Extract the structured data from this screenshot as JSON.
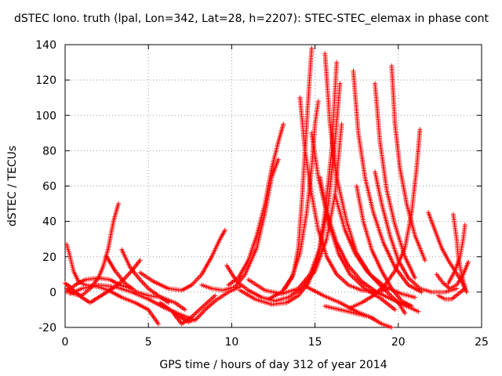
{
  "chart_data": {
    "type": "scatter",
    "title": "dSTEC Iono. truth (lpal, Lon=342, Lat=28, h=2207): STEC-STEC_elemax in phase cont",
    "xlabel": "GPS time / hours of day 312 of year 2014",
    "ylabel": "dSTEC  / TECUs",
    "xlim": [
      0,
      25
    ],
    "ylim": [
      -20,
      140
    ],
    "xticks": [
      0,
      5,
      10,
      15,
      20,
      25
    ],
    "yticks": [
      -20,
      0,
      20,
      40,
      60,
      80,
      100,
      120,
      140
    ],
    "grid": true,
    "marker": "+",
    "marker_color": "#ff0000",
    "series": [
      {
        "points": [
          [
            0,
            5
          ],
          [
            0.3,
            3
          ],
          [
            0.6,
            0
          ],
          [
            1,
            -3
          ],
          [
            1.5,
            -6
          ],
          [
            2,
            -3
          ],
          [
            2.5,
            0
          ],
          [
            3,
            3
          ],
          [
            3.5,
            7
          ],
          [
            4,
            12
          ],
          [
            4.5,
            18
          ]
        ]
      },
      {
        "points": [
          [
            0.1,
            2
          ],
          [
            0.5,
            -1
          ],
          [
            1,
            -2
          ],
          [
            1.5,
            2
          ],
          [
            2,
            8
          ],
          [
            2.3,
            15
          ],
          [
            2.6,
            25
          ],
          [
            2.9,
            40
          ],
          [
            3.2,
            50
          ]
        ]
      },
      {
        "points": [
          [
            0.1,
            0
          ],
          [
            0.6,
            4
          ],
          [
            1.2,
            7
          ],
          [
            2,
            8
          ],
          [
            2.7,
            7
          ],
          [
            3.3,
            4
          ],
          [
            4,
            2
          ]
        ]
      },
      {
        "points": [
          [
            0.3,
            -1
          ],
          [
            1,
            2
          ],
          [
            2,
            4
          ],
          [
            3,
            3
          ],
          [
            4,
            0
          ],
          [
            5,
            -4
          ],
          [
            6,
            -9
          ],
          [
            7,
            -13
          ],
          [
            7.8,
            -16
          ]
        ]
      },
      {
        "points": [
          [
            0.1,
            27
          ],
          [
            0.3,
            20
          ],
          [
            0.5,
            12
          ],
          [
            0.8,
            6
          ],
          [
            1.2,
            4
          ],
          [
            2,
            3
          ],
          [
            2.6,
            1
          ],
          [
            3.4,
            -3
          ],
          [
            4.2,
            -6
          ],
          [
            5,
            -10
          ],
          [
            5.6,
            -18
          ]
        ]
      },
      {
        "points": [
          [
            2.5,
            20
          ],
          [
            3,
            12
          ],
          [
            3.6,
            5
          ],
          [
            4.3,
            0
          ],
          [
            5,
            -2
          ],
          [
            5.8,
            -3
          ],
          [
            6.6,
            -6
          ],
          [
            7.2,
            -10
          ]
        ]
      },
      {
        "points": [
          [
            3.4,
            24
          ],
          [
            3.9,
            14
          ],
          [
            4.5,
            7
          ],
          [
            5,
            2
          ],
          [
            5.6,
            -2
          ],
          [
            6.2,
            -6
          ]
        ]
      },
      {
        "points": [
          [
            4.5,
            11
          ],
          [
            5.3,
            6
          ],
          [
            6.2,
            2
          ],
          [
            7,
            1
          ],
          [
            7.6,
            4
          ],
          [
            8.2,
            10
          ],
          [
            8.8,
            20
          ],
          [
            9.3,
            30
          ],
          [
            9.6,
            35
          ]
        ]
      },
      {
        "points": [
          [
            5.7,
            -6
          ],
          [
            6.3,
            -10
          ],
          [
            6.9,
            -14
          ],
          [
            7.4,
            -17
          ],
          [
            7.9,
            -15
          ],
          [
            8.4,
            -10
          ],
          [
            9,
            -5
          ],
          [
            9.8,
            0
          ],
          [
            10.5,
            3
          ]
        ]
      },
      {
        "points": [
          [
            6.5,
            -12
          ],
          [
            7,
            -18
          ],
          [
            7.6,
            -14
          ],
          [
            8.3,
            -8
          ],
          [
            9,
            -2
          ]
        ]
      },
      {
        "points": [
          [
            8.2,
            4
          ],
          [
            8.8,
            2
          ],
          [
            9.5,
            1
          ],
          [
            10.2,
            3
          ],
          [
            10.8,
            10
          ],
          [
            11.5,
            25
          ],
          [
            12,
            45
          ],
          [
            12.4,
            65
          ],
          [
            12.8,
            75
          ]
        ]
      },
      {
        "points": [
          [
            9.8,
            4
          ],
          [
            10.4,
            8
          ],
          [
            11,
            18
          ],
          [
            11.5,
            32
          ],
          [
            12,
            50
          ],
          [
            12.4,
            70
          ],
          [
            12.8,
            85
          ],
          [
            13.1,
            95
          ]
        ]
      },
      {
        "points": [
          [
            9.7,
            15
          ],
          [
            10.3,
            6
          ],
          [
            11,
            1
          ],
          [
            11.8,
            -3
          ],
          [
            12.6,
            -5
          ],
          [
            13.4,
            -3
          ],
          [
            14.2,
            2
          ],
          [
            15,
            12
          ],
          [
            15.7,
            30
          ],
          [
            16.2,
            55
          ],
          [
            16.6,
            95
          ]
        ]
      },
      {
        "points": [
          [
            10.5,
            1
          ],
          [
            11.4,
            -4
          ],
          [
            12.4,
            -7
          ],
          [
            13.3,
            -6
          ],
          [
            14,
            -2
          ],
          [
            14.6,
            5
          ],
          [
            15.2,
            20
          ],
          [
            15.6,
            45
          ],
          [
            16,
            80
          ],
          [
            16.3,
            130
          ]
        ]
      },
      {
        "points": [
          [
            11,
            7
          ],
          [
            12,
            1
          ],
          [
            13,
            -1
          ],
          [
            14,
            2
          ],
          [
            14.7,
            10
          ],
          [
            15.3,
            25
          ],
          [
            15.8,
            50
          ],
          [
            16.2,
            85
          ],
          [
            16.5,
            118
          ]
        ]
      },
      {
        "points": [
          [
            12.2,
            -4
          ],
          [
            13,
            0
          ],
          [
            13.6,
            8
          ],
          [
            14.1,
            22
          ],
          [
            14.5,
            45
          ],
          [
            14.8,
            70
          ],
          [
            15,
            95
          ],
          [
            15.2,
            108
          ]
        ]
      },
      {
        "points": [
          [
            13.2,
            2
          ],
          [
            13.7,
            10
          ],
          [
            14,
            25
          ],
          [
            14.2,
            50
          ],
          [
            14.4,
            80
          ],
          [
            14.6,
            110
          ],
          [
            14.8,
            138
          ]
        ]
      },
      {
        "points": [
          [
            14.1,
            110
          ],
          [
            14.4,
            80
          ],
          [
            14.8,
            55
          ],
          [
            15.2,
            35
          ],
          [
            15.7,
            20
          ],
          [
            16.3,
            10
          ],
          [
            17,
            4
          ],
          [
            17.8,
            1
          ],
          [
            18.7,
            0
          ],
          [
            19.5,
            2
          ]
        ]
      },
      {
        "points": [
          [
            14.8,
            90
          ],
          [
            15.2,
            65
          ],
          [
            15.7,
            45
          ],
          [
            16.3,
            28
          ],
          [
            17,
            15
          ],
          [
            17.8,
            6
          ],
          [
            18.7,
            0
          ],
          [
            19.6,
            -4
          ],
          [
            20.5,
            -8
          ],
          [
            21.2,
            -11
          ]
        ]
      },
      {
        "points": [
          [
            15.6,
            135
          ],
          [
            15.9,
            95
          ],
          [
            16.3,
            65
          ],
          [
            16.9,
            40
          ],
          [
            17.5,
            22
          ],
          [
            18.3,
            10
          ],
          [
            19.2,
            3
          ],
          [
            20.2,
            -1
          ],
          [
            21,
            -3
          ]
        ]
      },
      {
        "points": [
          [
            15.3,
            65
          ],
          [
            15.8,
            40
          ],
          [
            16.4,
            22
          ],
          [
            17.1,
            10
          ],
          [
            18,
            2
          ],
          [
            19,
            -4
          ],
          [
            19.8,
            -10
          ]
        ]
      },
      {
        "points": [
          [
            16.2,
            55
          ],
          [
            16.8,
            35
          ],
          [
            17.4,
            22
          ],
          [
            18.1,
            12
          ],
          [
            19,
            3
          ],
          [
            20,
            -6
          ],
          [
            20.4,
            -12
          ]
        ]
      },
      {
        "points": [
          [
            17.3,
            125
          ],
          [
            17.6,
            90
          ],
          [
            18,
            65
          ],
          [
            18.5,
            45
          ],
          [
            19.1,
            28
          ],
          [
            19.8,
            14
          ],
          [
            20.6,
            4
          ],
          [
            21.4,
            0
          ]
        ]
      },
      {
        "points": [
          [
            18.6,
            118
          ],
          [
            18.9,
            85
          ],
          [
            19.3,
            58
          ],
          [
            19.8,
            38
          ],
          [
            20.4,
            20
          ],
          [
            21,
            8
          ]
        ]
      },
      {
        "points": [
          [
            19.6,
            128
          ],
          [
            19.8,
            95
          ],
          [
            20.1,
            70
          ],
          [
            20.5,
            50
          ],
          [
            21,
            32
          ],
          [
            21.6,
            18
          ]
        ]
      },
      {
        "points": [
          [
            17.5,
            60
          ],
          [
            17.9,
            40
          ],
          [
            18.4,
            24
          ],
          [
            19,
            12
          ],
          [
            19.6,
            2
          ],
          [
            20.2,
            -5
          ],
          [
            20.8,
            -8
          ]
        ]
      },
      {
        "points": [
          [
            17.1,
            -9
          ],
          [
            17.8,
            -6
          ],
          [
            18.5,
            -2
          ],
          [
            19.2,
            4
          ],
          [
            19.8,
            12
          ],
          [
            20.4,
            25
          ],
          [
            20.8,
            45
          ],
          [
            21.1,
            70
          ],
          [
            21.3,
            92
          ]
        ]
      },
      {
        "points": [
          [
            15.6,
            -8
          ],
          [
            16.5,
            -10
          ],
          [
            17.4,
            -12
          ],
          [
            18.3,
            -14
          ],
          [
            19,
            -18
          ],
          [
            19.6,
            -22
          ]
        ]
      },
      {
        "points": [
          [
            14.5,
            3
          ],
          [
            15.5,
            -2
          ],
          [
            16.5,
            -6
          ],
          [
            17.5,
            -11
          ],
          [
            18.5,
            -15
          ]
        ]
      },
      {
        "points": [
          [
            18.6,
            68
          ],
          [
            19,
            50
          ],
          [
            19.5,
            32
          ],
          [
            20,
            18
          ],
          [
            20.6,
            8
          ],
          [
            21.3,
            2
          ],
          [
            22,
            0
          ],
          [
            22.8,
            0
          ],
          [
            23.5,
            2
          ]
        ]
      },
      {
        "points": [
          [
            21.8,
            45
          ],
          [
            22.2,
            35
          ],
          [
            22.6,
            25
          ],
          [
            23,
            18
          ],
          [
            23.4,
            12
          ],
          [
            23.8,
            6
          ],
          [
            24.1,
            0
          ]
        ]
      },
      {
        "points": [
          [
            22.3,
            10
          ],
          [
            22.7,
            5
          ],
          [
            23.1,
            2
          ],
          [
            23.5,
            4
          ],
          [
            23.9,
            10
          ],
          [
            24.2,
            17
          ]
        ]
      },
      {
        "points": [
          [
            23,
            5
          ],
          [
            23.4,
            12
          ],
          [
            23.7,
            20
          ],
          [
            23.9,
            30
          ],
          [
            24,
            38
          ]
        ]
      },
      {
        "points": [
          [
            22.4,
            -2
          ],
          [
            22.8,
            -4
          ],
          [
            23.2,
            -4
          ],
          [
            23.6,
            -1
          ],
          [
            24,
            2
          ]
        ]
      },
      {
        "points": [
          [
            23.3,
            44
          ],
          [
            23.5,
            30
          ],
          [
            23.6,
            20
          ],
          [
            23.8,
            10
          ],
          [
            24,
            3
          ]
        ]
      }
    ]
  }
}
